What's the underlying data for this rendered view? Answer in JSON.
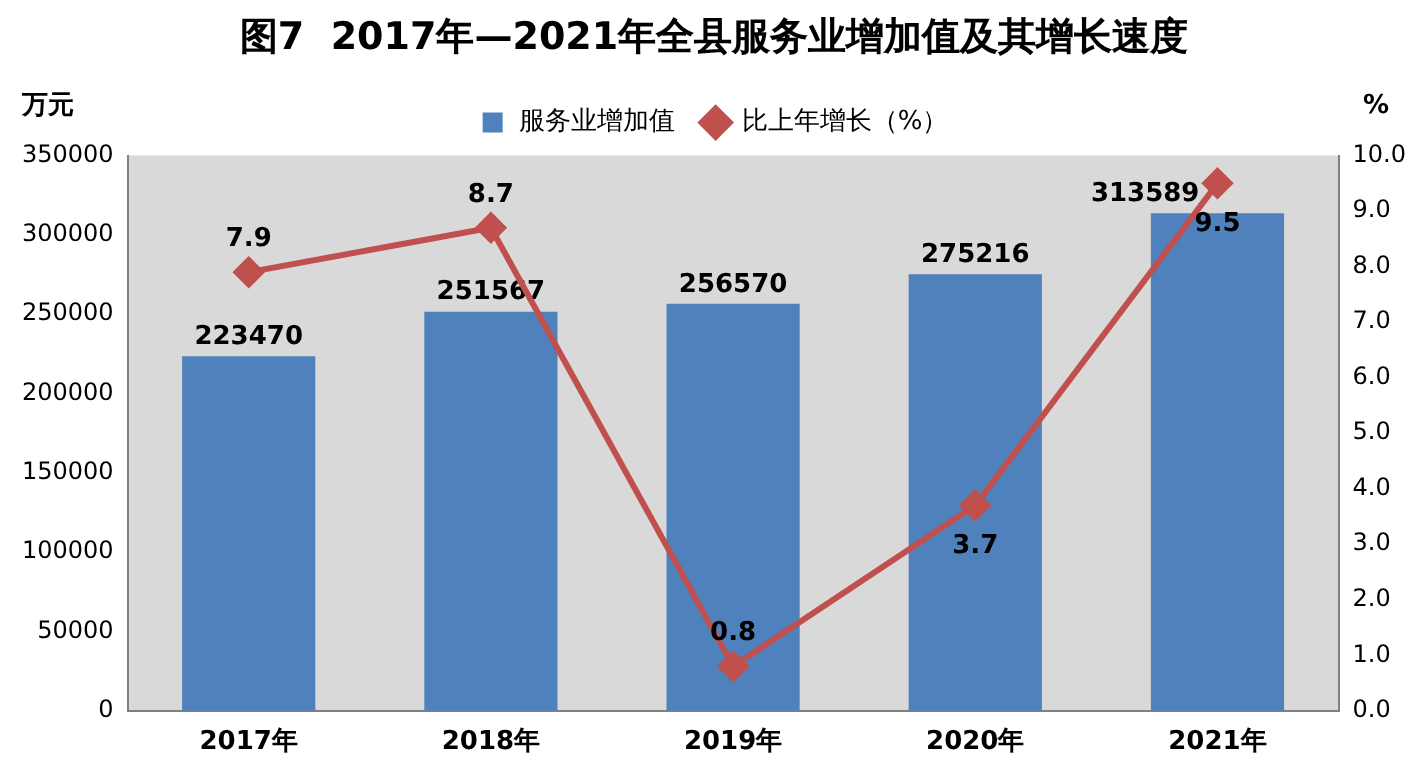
{
  "chart_data": {
    "type": "bar",
    "title": "图7  2017年—2021年全县服务业增加值及其增长速度",
    "ylabel": "万元",
    "y2label": "%",
    "categories": [
      "2017年",
      "2018年",
      "2019年",
      "2020年",
      "2021年"
    ],
    "series": [
      {
        "name": "服务业增加值",
        "color": "#4f81bd",
        "values": [
          223470,
          251567,
          256570,
          275216,
          313589
        ]
      },
      {
        "name": "比上年增长（%）",
        "type": "line",
        "axis": "y2",
        "color": "#c0504d",
        "marker": "diamond",
        "values": [
          7.9,
          8.7,
          0.8,
          3.7,
          9.5
        ]
      }
    ],
    "ylim": [
      0,
      350000
    ],
    "yticks": [
      0,
      50000,
      100000,
      150000,
      200000,
      250000,
      300000,
      350000
    ],
    "y2lim": [
      0,
      10
    ],
    "y2ticks": [
      {
        "value": 0,
        "label": "0.0"
      },
      {
        "value": 1,
        "label": "1.0"
      },
      {
        "value": 2,
        "label": "2.0"
      },
      {
        "value": 3,
        "label": "3.0"
      },
      {
        "value": 4,
        "label": "4.0"
      },
      {
        "value": 5,
        "label": "5.0"
      },
      {
        "value": 6,
        "label": "6.0"
      },
      {
        "value": 7,
        "label": "7.0"
      },
      {
        "value": 8,
        "label": "8.0"
      },
      {
        "value": 9,
        "label": "9.0"
      },
      {
        "value": 10,
        "label": "10.0"
      }
    ],
    "data_labels": true,
    "grid": false,
    "legend": "top"
  }
}
